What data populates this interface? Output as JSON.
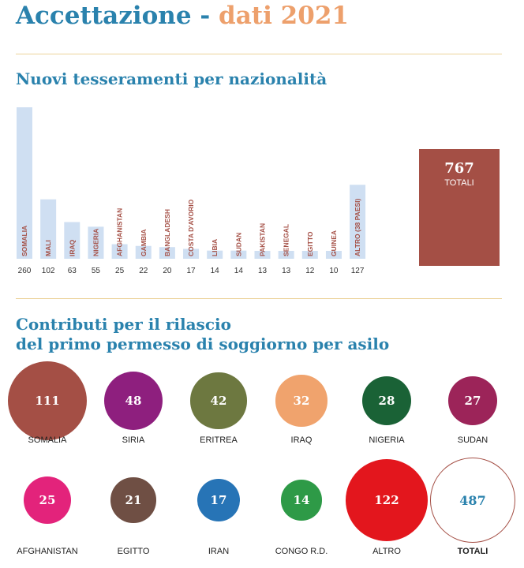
{
  "header": {
    "title_main": "Accettazione - ",
    "title_year": "dati 2021"
  },
  "section1": {
    "title": "Nuovi tesseramenti per nazionalità",
    "total_value": "767",
    "total_label": "TOTALI"
  },
  "section2": {
    "title_line1": "Contributi per il rilascio",
    "title_line2": "del primo permesso di soggiorno per asilo"
  },
  "colors": {
    "title_blue": "#2a82ad",
    "title_orange": "#eda06c",
    "bar_fill": "#cfdff2",
    "bar_label": "#a44f45",
    "total_box": "#a44f45"
  },
  "chart_data": [
    {
      "type": "bar",
      "title": "Nuovi tesseramenti per nazionalità",
      "categories": [
        "SOMALIA",
        "MALI",
        "IRAQ",
        "NIGERIA",
        "AFGHANISTAN",
        "GAMBIA",
        "BANGLADESH",
        "COSTA D'AVORIO",
        "LIBIA",
        "SUDAN",
        "PAKISTAN",
        "SENEGAL",
        "EGITTO",
        "GUINEA",
        "ALTRO (38 PAESI)"
      ],
      "values": [
        260,
        102,
        63,
        55,
        25,
        22,
        20,
        17,
        14,
        14,
        13,
        13,
        12,
        10,
        127
      ],
      "total": 767
    },
    {
      "type": "bubble",
      "title": "Contributi per il rilascio del primo permesso di soggiorno per asilo",
      "categories": [
        "SOMALIA",
        "SIRIA",
        "ERITREA",
        "IRAQ",
        "NIGERIA",
        "SUDAN",
        "AFGHANISTAN",
        "EGITTO",
        "IRAN",
        "CONGO R.D.",
        "ALTRO"
      ],
      "values": [
        111,
        48,
        42,
        32,
        28,
        27,
        25,
        21,
        17,
        14,
        122
      ],
      "colors": [
        "#a44f45",
        "#8e1f7e",
        "#6d7840",
        "#f0a36d",
        "#1a6236",
        "#9c2459",
        "#e3237b",
        "#6f4f44",
        "#2774b6",
        "#2e9a47",
        "#e3161d"
      ],
      "total": 487,
      "total_label": "TOTALI"
    }
  ]
}
